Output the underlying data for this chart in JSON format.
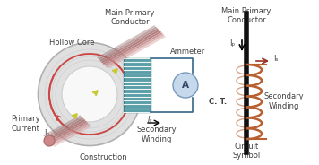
{
  "bg_color": "#ffffff",
  "left_section_label": "Construction",
  "right_section_label": "Circuit\nSymbol",
  "left_title": "Main Primary\nConductor",
  "right_title": "Main Primary\nConductor",
  "hollow_core_label": "Hollow Core",
  "primary_current_label": "Primary\nCurrent",
  "ip_label": "Iₚ",
  "is_label": "Iₛ",
  "secondary_winding_label": "Secondary\nWinding",
  "ammeter_label": "Ammeter",
  "ct_label": "C. T.",
  "conductor_color": "#d4a8a8",
  "conductor_highlight": "#e8c8c8",
  "torus_outer_color": "#e0e0e0",
  "torus_inner_color": "#f5f5f5",
  "torus_edge_color": "#b0b0b0",
  "coil_fill_color": "#5a9fa8",
  "coil_stripe_color": "#ffffff",
  "coil_edge_color": "#3a7f88",
  "arrow_yellow": "#c8c832",
  "arrow_red": "#cc4444",
  "ammeter_fill": "#c5d8ec",
  "ammeter_edge": "#7799bb",
  "wire_color": "#336688",
  "label_color": "#404040",
  "circuit_coil_color": "#b86030",
  "circuit_line_color": "#111111",
  "is_arrow_color": "#993322"
}
